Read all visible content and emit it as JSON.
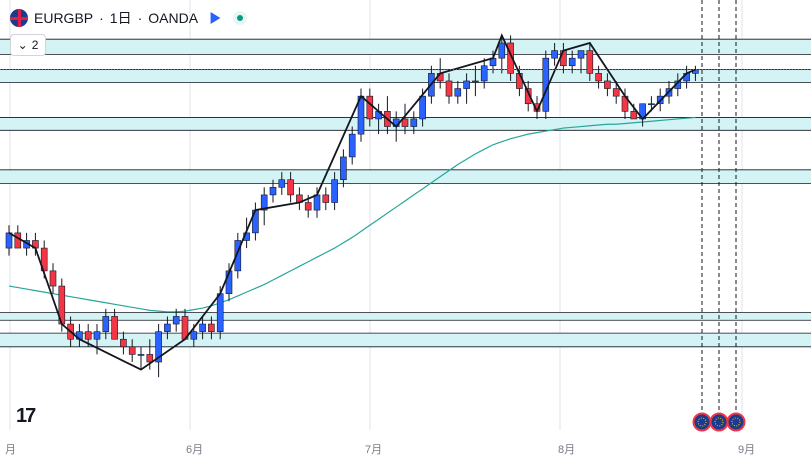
{
  "legend": {
    "symbol": "EURGBP",
    "sep1": "·",
    "interval": "1日",
    "sep2": "·",
    "exchange": "OANDA"
  },
  "collapse": {
    "count": "2",
    "chevron": "⌄"
  },
  "logo": "17",
  "time_axis": {
    "labels": [
      "月",
      "6月",
      "7月",
      "8月",
      "9月"
    ]
  },
  "colors": {
    "up": "#2962ff",
    "down": "#f23645",
    "zone": "#d3f3f5",
    "zone_line": "#131722",
    "ma": "#26a69a",
    "zigzag": "#131722",
    "grid": "#e0e3eb"
  },
  "event_icons": [
    "eu-flag-icon",
    "eu-flag-icon",
    "eu-flag-icon"
  ],
  "chart_data": {
    "type": "candlestick",
    "series": [
      {
        "name": "",
        "ohlc": [
          [
            0.85,
            0.853,
            0.849,
            0.852
          ],
          [
            0.852,
            0.853,
            0.85,
            0.85
          ],
          [
            0.85,
            0.852,
            0.849,
            0.851
          ],
          [
            0.851,
            0.852,
            0.849,
            0.85
          ],
          [
            0.85,
            0.851,
            0.846,
            0.847
          ],
          [
            0.847,
            0.848,
            0.844,
            0.845
          ],
          [
            0.845,
            0.846,
            0.839,
            0.84
          ],
          [
            0.84,
            0.841,
            0.837,
            0.838
          ],
          [
            0.838,
            0.84,
            0.837,
            0.839
          ],
          [
            0.839,
            0.84,
            0.837,
            0.838
          ],
          [
            0.838,
            0.84,
            0.836,
            0.839
          ],
          [
            0.839,
            0.842,
            0.838,
            0.841
          ],
          [
            0.841,
            0.842,
            0.838,
            0.838
          ],
          [
            0.838,
            0.839,
            0.836,
            0.837
          ],
          [
            0.837,
            0.838,
            0.835,
            0.836
          ],
          [
            0.836,
            0.837,
            0.834,
            0.836
          ],
          [
            0.836,
            0.838,
            0.834,
            0.835
          ],
          [
            0.835,
            0.84,
            0.833,
            0.839
          ],
          [
            0.839,
            0.841,
            0.838,
            0.84
          ],
          [
            0.84,
            0.842,
            0.839,
            0.841
          ],
          [
            0.841,
            0.842,
            0.838,
            0.838
          ],
          [
            0.838,
            0.84,
            0.837,
            0.839
          ],
          [
            0.839,
            0.841,
            0.838,
            0.84
          ],
          [
            0.84,
            0.841,
            0.838,
            0.839
          ],
          [
            0.839,
            0.845,
            0.838,
            0.844
          ],
          [
            0.844,
            0.848,
            0.843,
            0.847
          ],
          [
            0.847,
            0.852,
            0.846,
            0.851
          ],
          [
            0.851,
            0.854,
            0.85,
            0.852
          ],
          [
            0.852,
            0.856,
            0.851,
            0.855
          ],
          [
            0.855,
            0.858,
            0.853,
            0.857
          ],
          [
            0.857,
            0.859,
            0.856,
            0.858
          ],
          [
            0.858,
            0.86,
            0.857,
            0.859
          ],
          [
            0.859,
            0.86,
            0.856,
            0.857
          ],
          [
            0.857,
            0.858,
            0.855,
            0.856
          ],
          [
            0.856,
            0.857,
            0.854,
            0.855
          ],
          [
            0.855,
            0.858,
            0.854,
            0.857
          ],
          [
            0.857,
            0.858,
            0.855,
            0.856
          ],
          [
            0.856,
            0.86,
            0.855,
            0.859
          ],
          [
            0.859,
            0.863,
            0.858,
            0.862
          ],
          [
            0.862,
            0.866,
            0.861,
            0.865
          ],
          [
            0.865,
            0.871,
            0.864,
            0.87
          ],
          [
            0.87,
            0.871,
            0.866,
            0.867
          ],
          [
            0.867,
            0.869,
            0.865,
            0.868
          ],
          [
            0.868,
            0.87,
            0.865,
            0.866
          ],
          [
            0.866,
            0.868,
            0.864,
            0.867
          ],
          [
            0.867,
            0.869,
            0.865,
            0.866
          ],
          [
            0.866,
            0.868,
            0.865,
            0.867
          ],
          [
            0.867,
            0.871,
            0.866,
            0.87
          ],
          [
            0.87,
            0.874,
            0.869,
            0.873
          ],
          [
            0.873,
            0.875,
            0.871,
            0.872
          ],
          [
            0.872,
            0.873,
            0.869,
            0.87
          ],
          [
            0.87,
            0.872,
            0.869,
            0.871
          ],
          [
            0.871,
            0.873,
            0.869,
            0.872
          ],
          [
            0.872,
            0.874,
            0.87,
            0.872
          ],
          [
            0.872,
            0.875,
            0.871,
            0.874
          ],
          [
            0.874,
            0.876,
            0.873,
            0.875
          ],
          [
            0.875,
            0.878,
            0.873,
            0.877
          ],
          [
            0.877,
            0.878,
            0.872,
            0.873
          ],
          [
            0.873,
            0.874,
            0.87,
            0.871
          ],
          [
            0.871,
            0.872,
            0.868,
            0.869
          ],
          [
            0.869,
            0.87,
            0.867,
            0.868
          ],
          [
            0.868,
            0.876,
            0.867,
            0.875
          ],
          [
            0.875,
            0.877,
            0.874,
            0.876
          ],
          [
            0.876,
            0.877,
            0.873,
            0.874
          ],
          [
            0.874,
            0.876,
            0.873,
            0.875
          ],
          [
            0.875,
            0.876,
            0.873,
            0.876
          ],
          [
            0.876,
            0.877,
            0.872,
            0.873
          ],
          [
            0.873,
            0.874,
            0.871,
            0.872
          ],
          [
            0.872,
            0.873,
            0.87,
            0.871
          ],
          [
            0.871,
            0.872,
            0.869,
            0.87
          ],
          [
            0.87,
            0.871,
            0.867,
            0.868
          ],
          [
            0.868,
            0.869,
            0.867,
            0.867
          ],
          [
            0.867,
            0.869,
            0.866,
            0.869
          ],
          [
            0.869,
            0.87,
            0.868,
            0.869
          ],
          [
            0.869,
            0.871,
            0.868,
            0.87
          ],
          [
            0.87,
            0.872,
            0.869,
            0.871
          ],
          [
            0.871,
            0.873,
            0.87,
            0.872
          ],
          [
            0.872,
            0.874,
            0.871,
            0.873
          ],
          [
            0.873,
            0.874,
            0.872,
            0.8735
          ]
        ]
      }
    ],
    "ma_values": [
      0.845,
      0.8448,
      0.8446,
      0.8444,
      0.8442,
      0.844,
      0.8438,
      0.8436,
      0.8434,
      0.8432,
      0.843,
      0.8428,
      0.8426,
      0.8424,
      0.8422,
      0.842,
      0.8418,
      0.8417,
      0.8416,
      0.8416,
      0.8417,
      0.8419,
      0.8421,
      0.8424,
      0.8428,
      0.8432,
      0.8437,
      0.8442,
      0.8447,
      0.8452,
      0.8458,
      0.8464,
      0.847,
      0.8476,
      0.8482,
      0.8488,
      0.8494,
      0.85,
      0.8507,
      0.8514,
      0.8522,
      0.853,
      0.8538,
      0.8546,
      0.8554,
      0.8562,
      0.857,
      0.8578,
      0.8586,
      0.8594,
      0.8602,
      0.861,
      0.8617,
      0.8624,
      0.863,
      0.8636,
      0.864,
      0.8644,
      0.8647,
      0.865,
      0.8652,
      0.8654,
      0.8656,
      0.8658,
      0.8659,
      0.866,
      0.8661,
      0.8662,
      0.8663,
      0.8663,
      0.8664,
      0.8665,
      0.8666,
      0.8667,
      0.8668,
      0.8669,
      0.867,
      0.8671,
      0.8672
    ],
    "zones": [
      [
        0.8775,
        0.8755
      ],
      [
        0.8735,
        0.8718
      ],
      [
        0.8672,
        0.8655
      ],
      [
        0.8603,
        0.8585
      ],
      [
        0.8415,
        0.8405
      ],
      [
        0.8388,
        0.837
      ]
    ],
    "zigzag": [
      [
        0,
        0.852
      ],
      [
        3,
        0.85
      ],
      [
        6,
        0.84
      ],
      [
        8,
        0.838
      ],
      [
        15,
        0.834
      ],
      [
        20,
        0.838
      ],
      [
        24,
        0.844
      ],
      [
        28,
        0.855
      ],
      [
        33,
        0.856
      ],
      [
        35,
        0.857
      ],
      [
        40,
        0.87
      ],
      [
        44,
        0.866
      ],
      [
        49,
        0.873
      ],
      [
        55,
        0.875
      ],
      [
        56,
        0.878
      ],
      [
        60,
        0.868
      ],
      [
        63,
        0.876
      ],
      [
        66,
        0.877
      ],
      [
        70,
        0.87
      ],
      [
        72,
        0.867
      ],
      [
        77,
        0.873
      ],
      [
        78,
        0.8735
      ]
    ],
    "ylim": [
      0.83,
      0.882
    ]
  }
}
